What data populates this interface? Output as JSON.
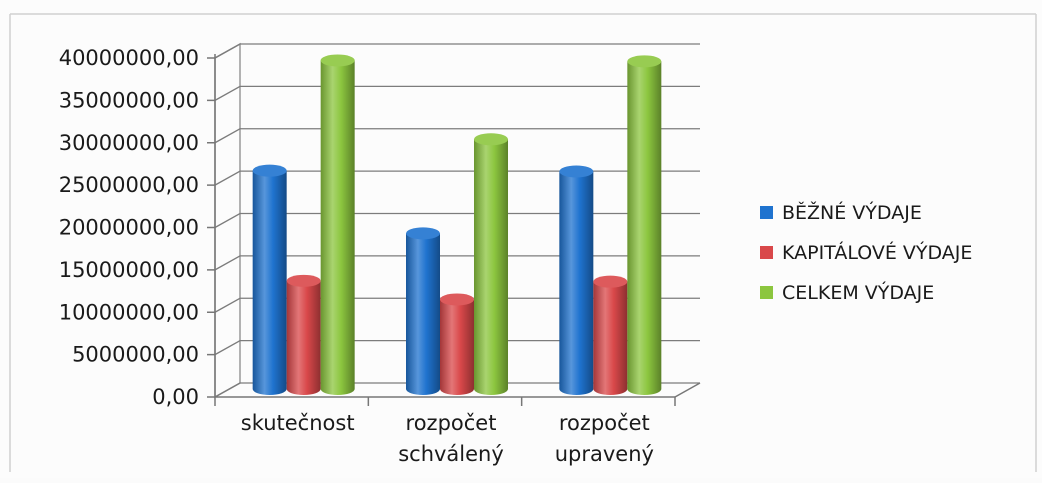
{
  "chart_data": {
    "type": "bar",
    "style": "3d-cylinder",
    "categories": [
      [
        "skutečnost"
      ],
      [
        "rozpočet",
        "schválený"
      ],
      [
        "rozpočet",
        "upravený"
      ]
    ],
    "series": [
      {
        "name": "BĚŽNÉ VÝDAJE",
        "color": "#1f73cf",
        "values": [
          26000000,
          18600000,
          25900000
        ]
      },
      {
        "name": "KAPITÁLOVÉ VÝDAJE",
        "color": "#d9484a",
        "values": [
          13000000,
          10800000,
          12900000
        ]
      },
      {
        "name": "CELKEM  VÝDAJE",
        "color": "#8cc63f",
        "values": [
          39000000,
          29700000,
          38900000
        ]
      }
    ],
    "ylim": [
      0,
      40000000
    ],
    "yticks": [
      "0,00",
      "5000000,00",
      "10000000,00",
      "15000000,00",
      "20000000,00",
      "25000000,00",
      "30000000,00",
      "35000000,00",
      "40000000,00"
    ],
    "grid": true,
    "legend_position": "right"
  }
}
